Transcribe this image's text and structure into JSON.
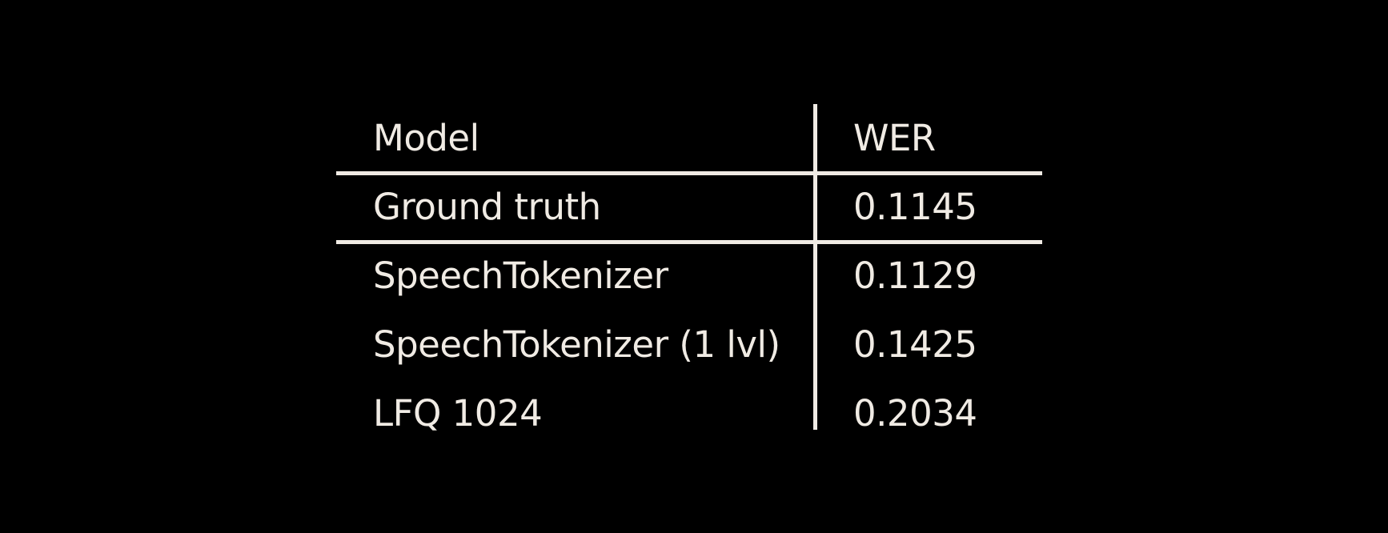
{
  "colors": {
    "background": "#000000",
    "foreground": "#F0EBE4"
  },
  "chart_data": {
    "type": "table",
    "columns": [
      "Model",
      "WER"
    ],
    "rows": [
      {
        "model": "Ground truth",
        "wer": "0.1145"
      },
      {
        "model": "SpeechTokenizer",
        "wer": "0.1129"
      },
      {
        "model": "SpeechTokenizer (1 lvl)",
        "wer": "0.1425"
      },
      {
        "model": "LFQ 1024",
        "wer": "0.2034"
      }
    ],
    "separators_after_rows": [
      0,
      1
    ]
  }
}
